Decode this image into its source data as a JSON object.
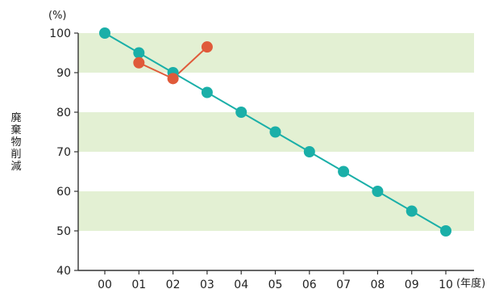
{
  "chart_data": {
    "type": "line",
    "x": [
      "00",
      "01",
      "02",
      "03",
      "04",
      "05",
      "06",
      "07",
      "08",
      "09",
      "10"
    ],
    "xlabel": "(年度)",
    "ylabel": "廃棄物削減",
    "yunit": "(%)",
    "ylim": [
      40,
      100
    ],
    "yticks": [
      40,
      50,
      60,
      70,
      80,
      90,
      100
    ],
    "grid": "alternating horizontal bands",
    "series": [
      {
        "color": "#1aafa8",
        "values": [
          100,
          95,
          90,
          85,
          80,
          75,
          70,
          65,
          60,
          55,
          50
        ]
      },
      {
        "color": "#e05a3a",
        "values": [
          null,
          92.5,
          88.5,
          96.5,
          null,
          null,
          null,
          null,
          null,
          null,
          null
        ]
      }
    ],
    "band_color": "#e3f0d3"
  }
}
